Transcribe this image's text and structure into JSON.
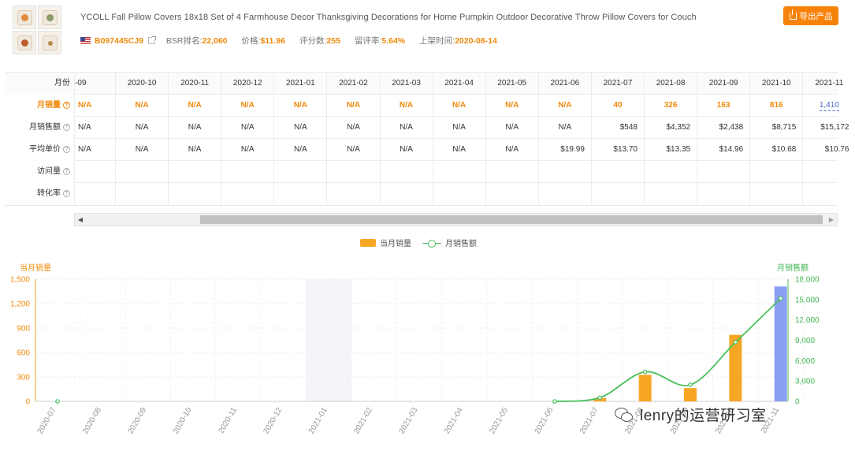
{
  "product": {
    "title": "YCOLL Fall Pillow Covers 18x18 Set of 4 Farmhouse Decor Thanksgiving Decorations for Home Pumpkin Outdoor Decorative Throw Pillow Covers for Couch",
    "thumbnail_icons": [
      "pillow-pumpkin-icon",
      "pillow-fall-icon",
      "pillow-truck-icon",
      "pillow-plaid-icon"
    ],
    "flag": "us-flag-icon",
    "asin": "B097445CJ9",
    "bsr_label": "BSR排名:",
    "bsr_value": "22,060",
    "price_label": "价格:",
    "price_value": "$11.96",
    "reviews_label": "评分数:",
    "reviews_value": "255",
    "review_rate_label": "留评率:",
    "review_rate_value": "5.64%",
    "launch_label": "上架时间:",
    "launch_value": "2020-08-14"
  },
  "export_button": {
    "label": "导出产品",
    "icon": "export-icon"
  },
  "table": {
    "header_label": "月份",
    "months": [
      "-09",
      "2020-10",
      "2020-11",
      "2020-12",
      "2021-01",
      "2021-02",
      "2021-03",
      "2021-04",
      "2021-05",
      "2021-06",
      "2021-07",
      "2021-08",
      "2021-09",
      "2021-10",
      "2021-11"
    ],
    "rows": [
      {
        "label": "月销量",
        "values": [
          "N/A",
          "N/A",
          "N/A",
          "N/A",
          "N/A",
          "N/A",
          "N/A",
          "N/A",
          "N/A",
          "N/A",
          "40",
          "326",
          "163",
          "816",
          "1,410"
        ]
      },
      {
        "label": "月销售额",
        "values": [
          "N/A",
          "N/A",
          "N/A",
          "N/A",
          "N/A",
          "N/A",
          "N/A",
          "N/A",
          "N/A",
          "N/A",
          "$548",
          "$4,352",
          "$2,438",
          "$8,715",
          "$15,172"
        ]
      },
      {
        "label": "平均单价",
        "values": [
          "N/A",
          "N/A",
          "N/A",
          "N/A",
          "N/A",
          "N/A",
          "N/A",
          "N/A",
          "N/A",
          "$19.99",
          "$13.70",
          "$13.35",
          "$14.96",
          "$10.68",
          "$10.76"
        ]
      },
      {
        "label": "访问量",
        "values": [
          "",
          "",
          "",
          "",
          "",
          "",
          "",
          "",
          "",
          "",
          "",
          "",
          "",
          "",
          ""
        ]
      },
      {
        "label": "转化率",
        "values": [
          "",
          "",
          "",
          "",
          "",
          "",
          "",
          "",
          "",
          "",
          "",
          "",
          "",
          "",
          ""
        ]
      }
    ]
  },
  "scrollbar": {
    "left_arrow": "◀",
    "right_arrow": "▶"
  },
  "chart_data": {
    "type": "bar",
    "title": "",
    "categories": [
      "2020-07",
      "2020-08",
      "2020-09",
      "2020-10",
      "2020-11",
      "2020-12",
      "2021-01",
      "2021-02",
      "2021-03",
      "2021-04",
      "2021-05",
      "2021-06",
      "2021-07",
      "2021-08",
      "2021-09",
      "2021-10",
      "2021-11"
    ],
    "series": [
      {
        "name": "当月销量",
        "kind": "bar",
        "axis": "left",
        "color": "#f7a624",
        "highlight_color": "#8b9ff0",
        "highlight_index": 16,
        "values": [
          0,
          0,
          0,
          0,
          0,
          0,
          0,
          0,
          0,
          0,
          0,
          0,
          40,
          326,
          163,
          816,
          1410
        ]
      },
      {
        "name": "月销售额",
        "kind": "line",
        "axis": "right",
        "color": "#49c05b",
        "values": [
          0,
          null,
          null,
          null,
          null,
          null,
          null,
          null,
          null,
          null,
          null,
          0,
          548,
          4352,
          2438,
          8715,
          15172
        ]
      }
    ],
    "ylabel": "当月销量",
    "y2label": "月销售额",
    "ylim": [
      0,
      1500
    ],
    "yticks": [
      "0",
      "300",
      "600",
      "900",
      "1,200",
      "1,500"
    ],
    "y2lim": [
      0,
      18000
    ],
    "y2ticks": [
      "0",
      "3,000",
      "6,000",
      "9,000",
      "12,000",
      "15,000",
      "18,000"
    ],
    "highlight_band_index": 6,
    "legend": [
      "当月销量",
      "月销售额"
    ]
  },
  "watermark": {
    "text": "lenry的运营研习室",
    "icon": "wechat-icon"
  }
}
